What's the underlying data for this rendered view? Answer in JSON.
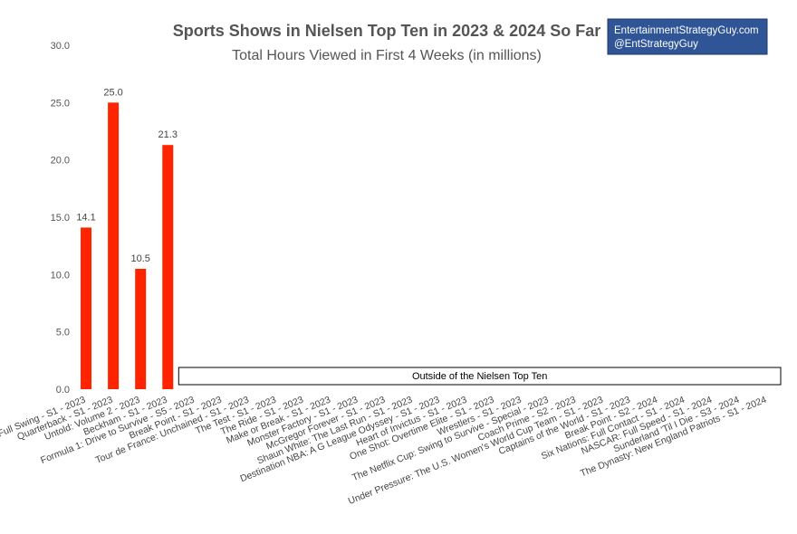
{
  "chart_data": {
    "type": "bar",
    "title": "Sports Shows in Nielsen Top Ten in 2023 & 2024 So Far",
    "subtitle": "Total Hours Viewed in First 4 Weeks (in millions)",
    "watermark": [
      "EntertainmentStrategyGuy.com",
      "@EntStrategyGuy"
    ],
    "annotation": "Outside of the Nielsen Top Ten",
    "categories": [
      "Full Swing - S1 - 2023",
      "Quarterback - S1 - 2023",
      "Untold: Volume 2 - 2023",
      "Beckham - S1 - 2023",
      "Formula 1: Drive to Survive - S5 - 2023",
      "Break Point - S1 - 2023",
      "Tour de France: Unchained - S1 - 2023",
      "The Test - S1 - 2023",
      "The Ride - S1 - 2023",
      "Make or Break - S1 - 2023",
      "Monster Factory - S1 - 2023",
      "McGregor Forever - S1 - 2023",
      "Shaun White: The Last Run - S1 - 2023",
      "Destination NBA: A G League Odyssey - S1 - 2023",
      "Heart of Invictus - S1 - 2023",
      "One Shot: Overtime Elite - S1 - 2023",
      "Wrestlers - S1 - 2023",
      "The Netflix Cup: Swing to Survive - Special - 2023",
      "Coach Prime - S2 - 2023",
      "Under Pressure: The U.S. Women's World Cup Team - S1 - 2023",
      "Captains of the World - S1 - 2023",
      "Break Point - S2 - 2024",
      "Six Nations: Full Contact - S1 - 2024",
      "NASCAR: Full Speed - S1 - 2024",
      "Sunderland 'Til I Die - S3 - 2024",
      "The Dynasty: New England Patriots - S1 - 2024"
    ],
    "values": [
      14.1,
      25.0,
      10.5,
      21.3,
      null,
      null,
      null,
      null,
      null,
      null,
      null,
      null,
      null,
      null,
      null,
      null,
      null,
      null,
      null,
      null,
      null,
      null,
      null,
      null,
      null,
      null
    ],
    "value_labels": [
      "14.1",
      "25.0",
      "10.5",
      "21.3",
      null,
      null,
      null,
      null,
      null,
      null,
      null,
      null,
      null,
      null,
      null,
      null,
      null,
      null,
      null,
      null,
      null,
      null,
      null,
      null,
      null,
      null
    ],
    "color": "#ff2400",
    "ylim": [
      0,
      30
    ],
    "yticks": [
      {
        "value": 0,
        "label": "0.0"
      },
      {
        "value": 5,
        "label": "5.0"
      },
      {
        "value": 10,
        "label": "10.0"
      },
      {
        "value": 15,
        "label": "15.0"
      },
      {
        "value": 20,
        "label": "20.0"
      },
      {
        "value": 25,
        "label": "25.0"
      },
      {
        "value": 30,
        "label": "30.0"
      }
    ],
    "grid": false
  }
}
